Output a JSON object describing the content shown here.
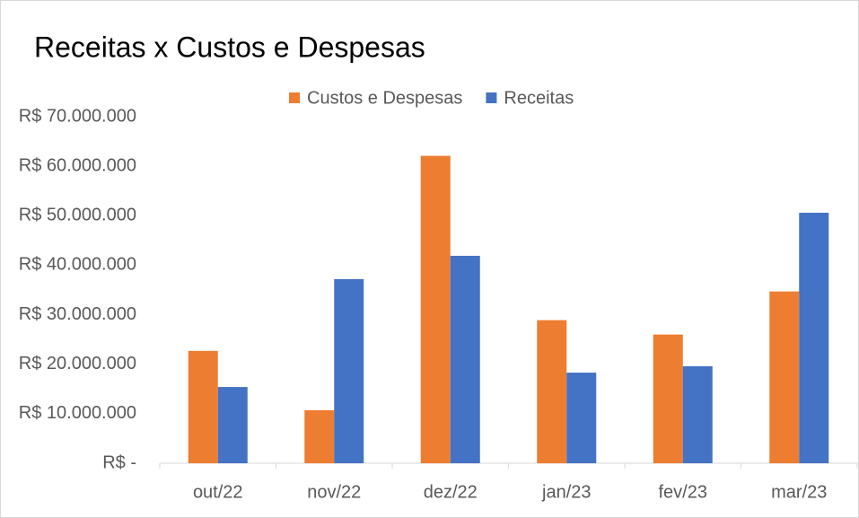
{
  "chart_data": {
    "type": "bar",
    "title": "Receitas x Custos e Despesas",
    "categories": [
      "out/22",
      "nov/22",
      "dez/22",
      "jan/23",
      "fev/23",
      "mar/23"
    ],
    "series": [
      {
        "name": "Custos e Despesas",
        "color": "#ed7d31",
        "values": [
          22700000,
          10700000,
          62100000,
          28900000,
          26000000,
          34700000
        ]
      },
      {
        "name": "Receitas",
        "color": "#4472c4",
        "values": [
          15400000,
          37200000,
          41900000,
          18300000,
          19600000,
          50600000
        ]
      }
    ],
    "ylim": [
      0,
      70000000
    ],
    "yticks": [
      {
        "value": 0,
        "label": "R$ -"
      },
      {
        "value": 10000000,
        "label": "R$ 10.000.000"
      },
      {
        "value": 20000000,
        "label": "R$ 20.000.000"
      },
      {
        "value": 30000000,
        "label": "R$ 30.000.000"
      },
      {
        "value": 40000000,
        "label": "R$ 40.000.000"
      },
      {
        "value": 50000000,
        "label": "R$ 50.000.000"
      },
      {
        "value": 60000000,
        "label": "R$ 60.000.000"
      },
      {
        "value": 70000000,
        "label": "R$ 70.000.000"
      }
    ],
    "legend": "top",
    "grid": false
  }
}
